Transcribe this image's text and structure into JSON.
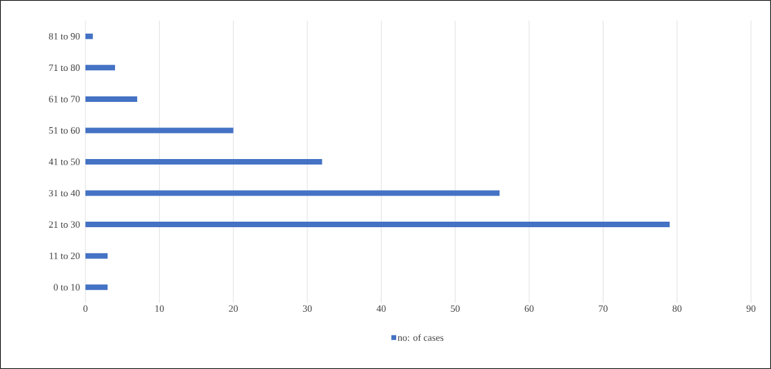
{
  "chart_data": {
    "type": "bar",
    "orientation": "horizontal",
    "categories": [
      "81 to 90",
      "71 to 80",
      "61 to 70",
      "51 to 60",
      "41 to 50",
      "31 to 40",
      "21 to 30",
      "11 to 20",
      "0 to 10"
    ],
    "series": [
      {
        "name": "no: of cases",
        "color": "#4472c4",
        "values": [
          1,
          4,
          7,
          20,
          32,
          56,
          79,
          3,
          3
        ]
      }
    ],
    "xlim": [
      0,
      90
    ],
    "xticks": [
      0,
      10,
      20,
      30,
      40,
      50,
      60,
      70,
      80,
      90
    ],
    "grid": "x",
    "legend": "bottom"
  }
}
